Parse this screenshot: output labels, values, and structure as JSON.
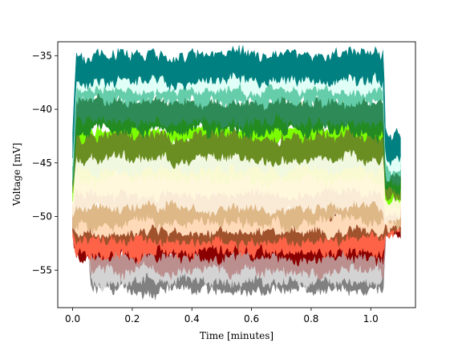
{
  "chart_data": {
    "type": "area",
    "title": "",
    "xlabel": "Time [minutes]",
    "ylabel": "Voltage [mV]",
    "xlim": [
      -0.05,
      1.15
    ],
    "ylim": [
      -58.5,
      -33.7
    ],
    "xticks": [
      0.0,
      0.2,
      0.4,
      0.6,
      0.8,
      1.0
    ],
    "xtick_labels": [
      "0.0",
      "0.2",
      "0.4",
      "0.6",
      "0.8",
      "1.0"
    ],
    "yticks": [
      -35,
      -40,
      -45,
      -50,
      -55
    ],
    "ytick_labels": [
      "−35",
      "−40",
      "−45",
      "−50",
      "−55"
    ],
    "grid": false,
    "legend": "none",
    "noise_band": "each series is a noisy trace drawn as a filled band between its lower and upper envelope",
    "series": [
      {
        "color": "#808080",
        "pre_mV": -51.0,
        "plateau_mV": -55.8,
        "post_mV": -51.0,
        "band_mV": 2.4,
        "start_min": 0.05,
        "end_min": 1.05,
        "trace_start_min": 0.05,
        "trace_end_min": 1.05
      },
      {
        "color": "#d3d3d3",
        "pre_mV": -50.8,
        "plateau_mV": -55.0,
        "post_mV": -50.8,
        "band_mV": 2.2,
        "start_min": 0.05,
        "end_min": 1.05,
        "trace_start_min": 0.05,
        "trace_end_min": 1.05
      },
      {
        "color": "#bc8f8f",
        "pre_mV": -50.6,
        "plateau_mV": -54.0,
        "post_mV": -50.6,
        "band_mV": 2.3,
        "start_min": 0.05,
        "end_min": 1.05,
        "trace_start_min": 0.05,
        "trace_end_min": 1.05
      },
      {
        "color": "#8b0000",
        "pre_mV": -50.5,
        "plateau_mV": -52.8,
        "post_mV": -50.5,
        "band_mV": 2.4,
        "start_min": 0.0,
        "end_min": 1.05,
        "trace_start_min": 0.0,
        "trace_end_min": 1.1
      },
      {
        "color": "#ff6347",
        "pre_mV": -50.4,
        "plateau_mV": -52.2,
        "post_mV": -50.4,
        "band_mV": 2.4,
        "start_min": 0.0,
        "end_min": 1.05,
        "trace_start_min": 0.0,
        "trace_end_min": 1.1
      },
      {
        "color": "#a0522d",
        "pre_mV": -50.3,
        "plateau_mV": -51.2,
        "post_mV": -50.3,
        "band_mV": 2.2,
        "start_min": 0.0,
        "end_min": 1.05,
        "trace_start_min": 0.0,
        "trace_end_min": 1.1
      },
      {
        "color": "#ffdab9",
        "pre_mV": -50.0,
        "plateau_mV": -50.5,
        "post_mV": -50.0,
        "band_mV": 1.8,
        "start_min": 0.0,
        "end_min": 1.05,
        "trace_start_min": 0.0,
        "trace_end_min": 1.1
      },
      {
        "color": "#deb887",
        "pre_mV": -49.8,
        "plateau_mV": -49.5,
        "post_mV": -49.8,
        "band_mV": 2.2,
        "start_min": 0.0,
        "end_min": 1.05,
        "trace_start_min": 0.0,
        "trace_end_min": 1.1
      },
      {
        "color": "#faebd7",
        "pre_mV": -49.0,
        "plateau_mV": -48.0,
        "post_mV": -49.0,
        "band_mV": 2.2,
        "start_min": 0.0,
        "end_min": 1.05,
        "trace_start_min": 0.0,
        "trace_end_min": 1.1
      },
      {
        "color": "#fff8dc",
        "pre_mV": -48.5,
        "plateau_mV": -46.8,
        "post_mV": -48.5,
        "band_mV": 2.2,
        "start_min": 0.0,
        "end_min": 1.05,
        "trace_start_min": 0.0,
        "trace_end_min": 1.1
      },
      {
        "color": "#fafad2",
        "pre_mV": -48.0,
        "plateau_mV": -45.5,
        "post_mV": -48.0,
        "band_mV": 2.2,
        "start_min": 0.0,
        "end_min": 1.05,
        "trace_start_min": 0.0,
        "trace_end_min": 1.1
      },
      {
        "color": "#f0f8e0",
        "pre_mV": -47.5,
        "plateau_mV": -44.6,
        "post_mV": -47.5,
        "band_mV": 2.0,
        "start_min": 0.0,
        "end_min": 1.05,
        "trace_start_min": 0.0,
        "trace_end_min": 1.1
      },
      {
        "color": "#7cfc00",
        "pre_mV": -47.2,
        "plateau_mV": -42.5,
        "post_mV": -47.2,
        "band_mV": 1.8,
        "start_min": 0.0,
        "end_min": 1.05,
        "trace_start_min": 0.0,
        "trace_end_min": 1.1
      },
      {
        "color": "#6b8e23",
        "pre_mV": -47.0,
        "plateau_mV": -43.5,
        "post_mV": -47.0,
        "band_mV": 2.2,
        "start_min": 0.0,
        "end_min": 1.05,
        "trace_start_min": 0.0,
        "trace_end_min": 1.1
      },
      {
        "color": "#228b22",
        "pre_mV": -46.3,
        "plateau_mV": -41.0,
        "post_mV": -46.3,
        "band_mV": 2.4,
        "start_min": 0.0,
        "end_min": 1.05,
        "trace_start_min": 0.0,
        "trace_end_min": 1.1
      },
      {
        "color": "#2e8b57",
        "pre_mV": -45.8,
        "plateau_mV": -40.2,
        "post_mV": -45.8,
        "band_mV": 2.2,
        "start_min": 0.0,
        "end_min": 1.05,
        "trace_start_min": 0.0,
        "trace_end_min": 1.1
      },
      {
        "color": "#66cdaa",
        "pre_mV": -45.2,
        "plateau_mV": -38.2,
        "post_mV": -45.2,
        "band_mV": 2.2,
        "start_min": 0.0,
        "end_min": 1.05,
        "trace_start_min": 0.0,
        "trace_end_min": 1.1
      },
      {
        "color": "#e0fff7",
        "pre_mV": -44.8,
        "plateau_mV": -37.6,
        "post_mV": -44.8,
        "band_mV": 1.6,
        "start_min": 0.0,
        "end_min": 1.05,
        "trace_start_min": 0.0,
        "trace_end_min": 1.1
      },
      {
        "color": "#008080",
        "pre_mV": -43.5,
        "plateau_mV": -36.0,
        "post_mV": -43.5,
        "band_mV": 2.6,
        "start_min": 0.0,
        "end_min": 1.05,
        "trace_start_min": 0.0,
        "trace_end_min": 1.1
      }
    ]
  }
}
